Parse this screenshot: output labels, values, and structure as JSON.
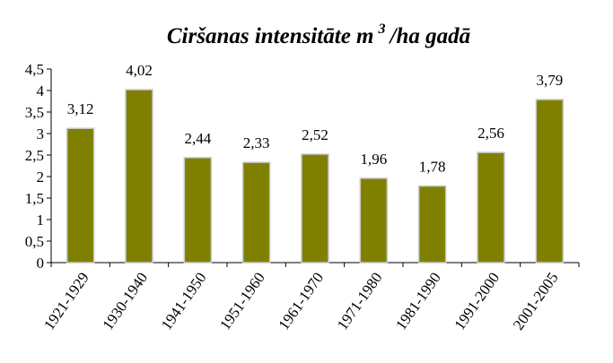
{
  "chart_data": {
    "type": "bar",
    "title": {
      "text": "Ciršanas intensitāte m",
      "superscript": "3",
      "suffix": "/ha gadā"
    },
    "categories": [
      "1921-1929",
      "1930-1940",
      "1941-1950",
      "1951-1960",
      "1961-1970",
      "1971-1980",
      "1981-1990",
      "1991-2000",
      "2001-2005"
    ],
    "values": [
      3.12,
      4.02,
      2.44,
      2.33,
      2.52,
      1.96,
      1.78,
      2.56,
      3.79
    ],
    "value_labels": [
      "3,12",
      "4,02",
      "2,44",
      "2,33",
      "2,52",
      "1,96",
      "1,78",
      "2,56",
      "3,79"
    ],
    "color": "#808000",
    "ylim": [
      0,
      4.5
    ],
    "yticks": [
      0,
      {
        "value": 0.5,
        "label": "0,5"
      },
      1,
      {
        "value": 1.5,
        "label": "1,5"
      },
      2,
      {
        "value": 2.5,
        "label": "2,5"
      },
      3,
      {
        "value": 3.5,
        "label": "3,5"
      },
      4,
      {
        "value": 4.5,
        "label": "4,5"
      }
    ],
    "grid": false
  }
}
